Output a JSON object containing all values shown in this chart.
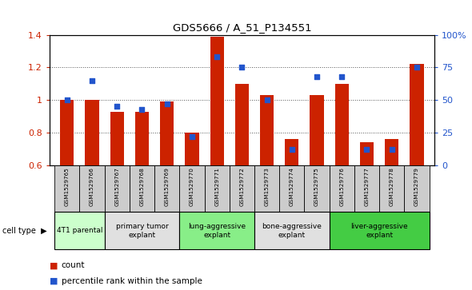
{
  "title": "GDS5666 / A_51_P134551",
  "samples": [
    "GSM1529765",
    "GSM1529766",
    "GSM1529767",
    "GSM1529768",
    "GSM1529769",
    "GSM1529770",
    "GSM1529771",
    "GSM1529772",
    "GSM1529773",
    "GSM1529774",
    "GSM1529775",
    "GSM1529776",
    "GSM1529777",
    "GSM1529778",
    "GSM1529779"
  ],
  "count_values": [
    1.0,
    1.0,
    0.93,
    0.93,
    0.99,
    0.8,
    1.39,
    1.1,
    1.03,
    0.76,
    1.03,
    1.1,
    0.74,
    0.76,
    1.22
  ],
  "percentile_values": [
    50,
    65,
    45,
    43,
    47,
    22,
    83,
    75,
    50,
    12,
    68,
    68,
    12,
    12,
    75
  ],
  "bar_color": "#cc2200",
  "dot_color": "#2255cc",
  "cell_types": [
    {
      "label": "4T1 parental",
      "start": 0,
      "end": 1,
      "color": "#ccffcc"
    },
    {
      "label": "primary tumor\nexplant",
      "start": 2,
      "end": 4,
      "color": "#e0e0e0"
    },
    {
      "label": "lung-aggressive\nexplant",
      "start": 5,
      "end": 7,
      "color": "#88ee88"
    },
    {
      "label": "bone-aggressive\nexplant",
      "start": 8,
      "end": 10,
      "color": "#e0e0e0"
    },
    {
      "label": "liver-aggressive\nexplant",
      "start": 11,
      "end": 14,
      "color": "#44cc44"
    }
  ],
  "ylim_left": [
    0.6,
    1.4
  ],
  "ylim_right": [
    0,
    100
  ],
  "yticks_left": [
    0.6,
    0.8,
    1.0,
    1.2,
    1.4
  ],
  "ytick_labels_left": [
    "0.6",
    "0.8",
    "1",
    "1.2",
    "1.4"
  ],
  "yticks_right": [
    0,
    25,
    50,
    75,
    100
  ],
  "ytick_labels_right": [
    "0",
    "25",
    "50",
    "75",
    "100%"
  ],
  "bar_width": 0.55,
  "dot_size": 22,
  "background_color": "#ffffff",
  "grid_color": "#555555",
  "gsm_row_color": "#cccccc",
  "cell_type_label": "cell type",
  "legend_items": [
    {
      "label": "count",
      "color": "#cc2200"
    },
    {
      "label": "percentile rank within the sample",
      "color": "#2255cc"
    }
  ]
}
